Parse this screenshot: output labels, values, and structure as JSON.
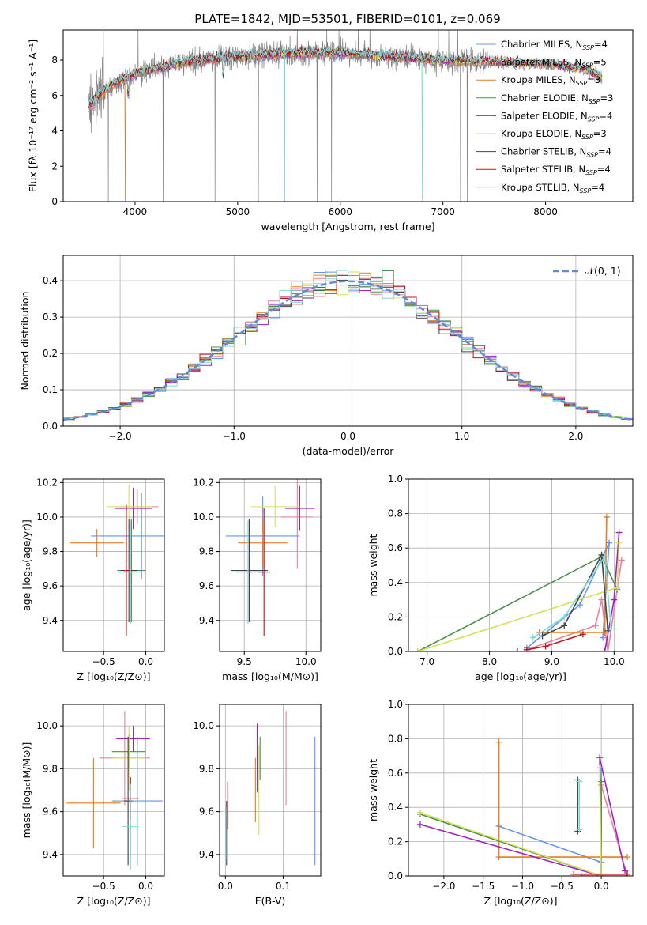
{
  "figure_title": "PLATE=1842, MJD=53501, FIBERID=0101, z=0.069",
  "series": [
    {
      "name": "Chabrier MILES",
      "sub": "SSP",
      "n": "4",
      "color": "#6495ed"
    },
    {
      "name": "Salpeter MILES",
      "sub": "SSP",
      "n": "5",
      "color": "#e8829a"
    },
    {
      "name": "Kroupa MILES",
      "sub": "SSP",
      "n": "3",
      "color": "#e67e22"
    },
    {
      "name": "Chabrier ELODIE",
      "sub": "SSP",
      "n": "3",
      "color": "#4f8f4f"
    },
    {
      "name": "Salpeter ELODIE",
      "sub": "SSP",
      "n": "4",
      "color": "#a020c8"
    },
    {
      "name": "Kroupa ELODIE",
      "sub": "SSP",
      "n": "3",
      "color": "#d4e157"
    },
    {
      "name": "Chabrier STELIB",
      "sub": "SSP",
      "n": "4",
      "color": "#444444"
    },
    {
      "name": "Salpeter STELIB",
      "sub": "SSP",
      "n": "4",
      "color": "#c0141e"
    },
    {
      "name": "Kroupa STELIB",
      "sub": "SSP",
      "n": "4",
      "color": "#7fd8d8"
    }
  ],
  "data_color": "#808080",
  "normal_color": "#5b8cd6",
  "chart_data": [
    {
      "id": "spectrum",
      "type": "line",
      "xlabel": "wavelength [Angstrom, rest frame]",
      "ylabel": "Flux [fλ 10⁻¹⁷ erg cm⁻² s⁻¹ A⁻¹]",
      "xlim": [
        3300,
        8850
      ],
      "ylim": [
        0,
        9.7
      ],
      "xticks": [
        4000,
        5000,
        6000,
        7000,
        8000
      ],
      "yticks": [
        0,
        2,
        4,
        6,
        8
      ],
      "continuum": [
        [
          3550,
          5.4
        ],
        [
          3700,
          6.3
        ],
        [
          3900,
          7.0
        ],
        [
          4100,
          7.4
        ],
        [
          4500,
          7.9
        ],
        [
          5000,
          8.2
        ],
        [
          5500,
          8.4
        ],
        [
          6000,
          8.4
        ],
        [
          6500,
          8.2
        ],
        [
          7000,
          8.0
        ],
        [
          7500,
          7.9
        ],
        [
          8000,
          7.8
        ],
        [
          8400,
          7.5
        ],
        [
          8550,
          7.0
        ]
      ],
      "model_range": [
        3550,
        8550
      ],
      "data_range": [
        3550,
        7440
      ]
    },
    {
      "id": "residuals",
      "type": "histogram",
      "xlabel": "(data-model)/error",
      "ylabel": "Normed distribution",
      "xlim": [
        -2.5,
        2.5
      ],
      "ylim": [
        0,
        0.47
      ],
      "xticks": [
        -2,
        -1,
        0,
        1,
        2
      ],
      "yticks": [
        0.0,
        0.1,
        0.2,
        0.3,
        0.4
      ],
      "legend": "𝒩(0, 1)",
      "legend_position": "upper right",
      "bin_width": 0.1
    },
    {
      "id": "age_vs_Z",
      "type": "scatter",
      "xlabel": "Z [log₁₀(Z/Z⊙)]",
      "ylabel": "age  [log₁₀(age/yr)]",
      "xlim": [
        -0.98,
        0.22
      ],
      "ylim": [
        9.22,
        10.22
      ],
      "xticks": [
        -0.5,
        0.0
      ],
      "yticks": [
        9.4,
        9.6,
        9.8,
        10.0,
        10.2
      ],
      "points": [
        {
          "s": 0,
          "x": -0.05,
          "y": 9.89,
          "xerr": 0.6,
          "yerr": 0.25
        },
        {
          "s": 1,
          "x": -0.1,
          "y": 10.06,
          "xerr": 0.25,
          "yerr": 0.1
        },
        {
          "s": 2,
          "x": -0.58,
          "y": 9.85,
          "xerr": 0.32,
          "yerr": 0.08
        },
        {
          "s": 3,
          "x": -0.17,
          "y": 9.69,
          "xerr": 0.17,
          "yerr": 0.3
        },
        {
          "s": 4,
          "x": -0.15,
          "y": 10.05,
          "xerr": 0.22,
          "yerr": 0.12
        },
        {
          "s": 5,
          "x": -0.2,
          "y": 10.06,
          "xerr": 0.27,
          "yerr": 0.13
        },
        {
          "s": 6,
          "x": -0.2,
          "y": 9.69,
          "xerr": 0.1,
          "yerr": 0.3
        },
        {
          "s": 7,
          "x": -0.23,
          "y": 9.69,
          "xerr": 0.04,
          "yerr": 0.38
        },
        {
          "s": 8,
          "x": -0.18,
          "y": 9.68,
          "xerr": 0.15,
          "yerr": 0.3
        }
      ]
    },
    {
      "id": "age_vs_mass",
      "type": "scatter",
      "xlabel": "mass [log₁₀(M/M⊙)]",
      "ylabel": "",
      "xlim": [
        9.3,
        10.12
      ],
      "ylim": [
        9.22,
        10.22
      ],
      "xticks": [
        9.5,
        10.0
      ],
      "yticks": [
        9.4,
        9.6,
        9.8,
        10.0,
        10.2
      ],
      "points": [
        {
          "s": 0,
          "x": 9.65,
          "y": 9.89,
          "xerr": 0.3,
          "yerr": 0.23
        },
        {
          "s": 1,
          "x": 9.93,
          "y": 10.0,
          "xerr": 0.13,
          "yerr": 0.3
        },
        {
          "s": 2,
          "x": 9.65,
          "y": 9.85,
          "xerr": 0.2,
          "yerr": 0.14
        },
        {
          "s": 3,
          "x": 9.54,
          "y": 9.69,
          "xerr": 0.1,
          "yerr": 0.3
        },
        {
          "s": 4,
          "x": 9.95,
          "y": 10.05,
          "xerr": 0.12,
          "yerr": 0.13
        },
        {
          "s": 5,
          "x": 9.75,
          "y": 10.06,
          "xerr": 0.2,
          "yerr": 0.12
        },
        {
          "s": 6,
          "x": 9.54,
          "y": 9.69,
          "xerr": 0.15,
          "yerr": 0.3
        },
        {
          "s": 7,
          "x": 9.66,
          "y": 9.68,
          "xerr": 0.05,
          "yerr": 0.37
        },
        {
          "s": 8,
          "x": 9.53,
          "y": 9.68,
          "xerr": 0.1,
          "yerr": 0.3
        }
      ]
    },
    {
      "id": "weight_vs_age",
      "type": "line",
      "xlabel": "age  [log₁₀(age/yr)]",
      "ylabel": "mass weight",
      "xlim": [
        6.7,
        10.3
      ],
      "ylim": [
        0,
        1.0
      ],
      "xticks": [
        7,
        8,
        9,
        10
      ],
      "yticks": [
        0.0,
        0.2,
        0.4,
        0.6,
        0.8,
        1.0
      ],
      "series": [
        {
          "s": 0,
          "x": [
            8.6,
            9.45,
            9.92,
            9.82
          ],
          "y": [
            0.02,
            0.27,
            0.63,
            0.08
          ]
        },
        {
          "s": 1,
          "x": [
            8.6,
            9.7,
            9.8,
            9.9,
            10.12
          ],
          "y": [
            0.01,
            0.15,
            0.3,
            0.0,
            0.53
          ]
        },
        {
          "s": 2,
          "x": [
            8.8,
            9.85,
            9.88
          ],
          "y": [
            0.11,
            0.11,
            0.78
          ]
        },
        {
          "s": 3,
          "x": [
            6.85,
            9.8,
            10.05
          ],
          "y": [
            0.0,
            0.55,
            0.36
          ]
        },
        {
          "s": 4,
          "x": [
            8.45,
            9.85,
            10.0,
            10.08
          ],
          "y": [
            0.0,
            0.0,
            0.3,
            0.69
          ]
        },
        {
          "s": 5,
          "x": [
            6.85,
            10.05,
            10.08
          ],
          "y": [
            0.0,
            0.37,
            0.63
          ]
        },
        {
          "s": 6,
          "x": [
            8.85,
            9.2,
            9.8,
            9.9
          ],
          "y": [
            0.09,
            0.15,
            0.56,
            0.12
          ]
        },
        {
          "s": 7,
          "x": [
            8.6,
            8.9,
            9.5
          ],
          "y": [
            0.01,
            0.03,
            0.1
          ]
        },
        {
          "s": 8,
          "x": [
            8.7,
            9.2,
            9.85,
            9.95
          ],
          "y": [
            0.08,
            0.2,
            0.55,
            0.13
          ]
        }
      ]
    },
    {
      "id": "mass_vs_Z",
      "type": "scatter",
      "xlabel": "Z [log₁₀(Z/Z⊙)]",
      "ylabel": "mass [log₁₀(M/M⊙)]",
      "xlim": [
        -0.98,
        0.22
      ],
      "ylim": [
        9.3,
        10.1
      ],
      "xticks": [
        -0.5,
        0.0
      ],
      "yticks": [
        9.4,
        9.6,
        9.8,
        10.0
      ],
      "points": [
        {
          "s": 0,
          "x": -0.1,
          "y": 9.65,
          "xerr": 0.3,
          "yerr": 0.3
        },
        {
          "s": 1,
          "x": -0.25,
          "y": 9.85,
          "xerr": 0.3,
          "yerr": 0.22
        },
        {
          "s": 2,
          "x": -0.62,
          "y": 9.64,
          "xerr": 0.32,
          "yerr": 0.21
        },
        {
          "s": 3,
          "x": -0.2,
          "y": 9.88,
          "xerr": 0.2,
          "yerr": 0.08
        },
        {
          "s": 4,
          "x": -0.15,
          "y": 9.94,
          "xerr": 0.2,
          "yerr": 0.06
        },
        {
          "s": 5,
          "x": -0.2,
          "y": 9.85,
          "xerr": 0.2,
          "yerr": 0.15
        },
        {
          "s": 6,
          "x": -0.21,
          "y": 9.65,
          "xerr": 0.05,
          "yerr": 0.3
        },
        {
          "s": 7,
          "x": -0.18,
          "y": 9.66,
          "xerr": 0.1,
          "yerr": 0.1
        },
        {
          "s": 8,
          "x": -0.18,
          "y": 9.53,
          "xerr": 0.1,
          "yerr": 0.2
        }
      ]
    },
    {
      "id": "mass_vs_EBV",
      "type": "scatter",
      "xlabel": "E(B-V)",
      "ylabel": "",
      "xlim": [
        -0.01,
        0.165
      ],
      "ylim": [
        9.3,
        10.1
      ],
      "xticks": [
        0.0,
        0.1
      ],
      "yticks": [
        9.4,
        9.6,
        9.8,
        10.0
      ],
      "points": [
        {
          "s": 0,
          "x": 0.155,
          "y": 9.65,
          "xerr": 0,
          "yerr": 0.3
        },
        {
          "s": 1,
          "x": 0.105,
          "y": 9.85,
          "xerr": 0,
          "yerr": 0.22
        },
        {
          "s": 2,
          "x": 0.052,
          "y": 9.7,
          "xerr": 0,
          "yerr": 0.15
        },
        {
          "s": 3,
          "x": 0.06,
          "y": 9.85,
          "xerr": 0,
          "yerr": 0.1
        },
        {
          "s": 4,
          "x": 0.055,
          "y": 9.85,
          "xerr": 0,
          "yerr": 0.16
        },
        {
          "s": 5,
          "x": 0.058,
          "y": 9.7,
          "xerr": 0,
          "yerr": 0.21
        },
        {
          "s": 6,
          "x": 0.002,
          "y": 9.5,
          "xerr": 0,
          "yerr": 0.15
        },
        {
          "s": 7,
          "x": 0.004,
          "y": 9.63,
          "xerr": 0,
          "yerr": 0.11
        },
        {
          "s": 8,
          "x": 0.001,
          "y": 9.5,
          "xerr": 0,
          "yerr": 0.12
        }
      ]
    },
    {
      "id": "weight_vs_Z",
      "type": "line",
      "xlabel": "Z [log₁₀(Z/Z⊙)]",
      "ylabel": "mass weight",
      "xlim": [
        -2.45,
        0.4
      ],
      "ylim": [
        0,
        1.0
      ],
      "xticks": [
        -2.0,
        -1.5,
        -1.0,
        -0.5,
        0.0
      ],
      "yticks": [
        0.0,
        0.2,
        0.4,
        0.6,
        0.8,
        1.0
      ],
      "series": [
        {
          "s": 0,
          "x": [
            -1.3,
            0.0,
            0.0
          ],
          "y": [
            0.29,
            0.08,
            0.63
          ]
        },
        {
          "s": 1,
          "x": [
            0.0,
            0.33,
            -0.25
          ],
          "y": [
            0.53,
            0.0,
            0.0
          ]
        },
        {
          "s": 2,
          "x": [
            -1.3,
            -1.3,
            0.33
          ],
          "y": [
            0.78,
            0.11,
            0.11
          ]
        },
        {
          "s": 3,
          "x": [
            -2.3,
            0.0,
            0.0
          ],
          "y": [
            0.36,
            0.0,
            0.55
          ]
        },
        {
          "s": 4,
          "x": [
            -2.3,
            0.0,
            -0.02,
            0.3
          ],
          "y": [
            0.3,
            0.0,
            0.69,
            0.03
          ]
        },
        {
          "s": 5,
          "x": [
            -2.3,
            0.0,
            -0.02
          ],
          "y": [
            0.37,
            0.0,
            0.63
          ]
        },
        {
          "s": 6,
          "x": [
            -0.3,
            -0.3
          ],
          "y": [
            0.56,
            0.26
          ]
        },
        {
          "s": 7,
          "x": [
            -0.35,
            0.33
          ],
          "y": [
            0.01,
            0.01
          ]
        },
        {
          "s": 8,
          "x": [
            -0.28,
            -0.28
          ],
          "y": [
            0.55,
            0.27
          ]
        }
      ]
    }
  ]
}
